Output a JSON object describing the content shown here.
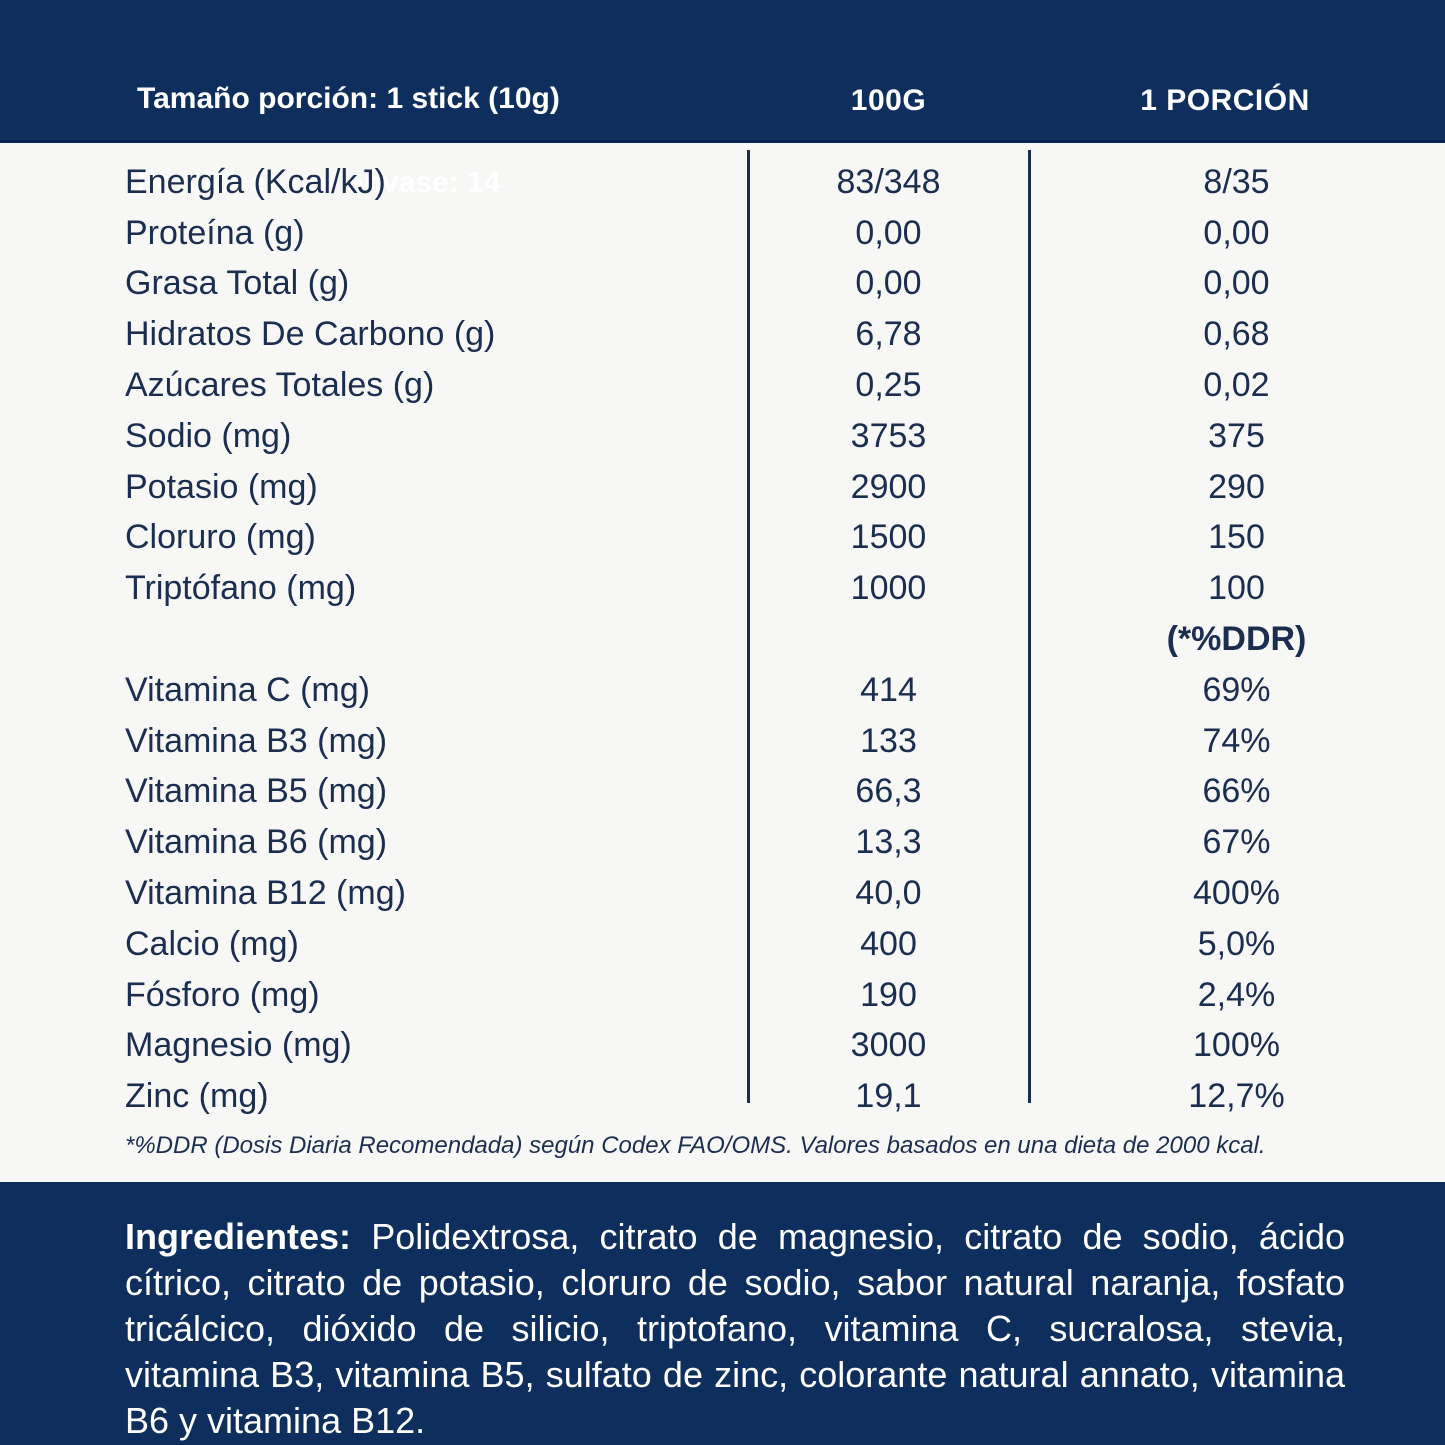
{
  "colors": {
    "navy": "#0e2f5e",
    "body_bg": "#f7f7f5",
    "table_text": "#1c2e50",
    "white": "#ffffff"
  },
  "header": {
    "serving_size": "Tamaño porción: 1 stick (10g)",
    "servings_per_container": "Porciones por envase: 14",
    "col_100g": "100G",
    "col_porcion": "1 PORCIÓN"
  },
  "table": {
    "ddr_header": "(*%DDR)",
    "rows": [
      {
        "label": "Energía (Kcal/kJ)",
        "per_100g": "83/348",
        "per_portion": "8/35"
      },
      {
        "label": "Proteína (g)",
        "per_100g": "0,00",
        "per_portion": "0,00"
      },
      {
        "label": "Grasa Total (g)",
        "per_100g": "0,00",
        "per_portion": "0,00"
      },
      {
        "label": "Hidratos De Carbono (g)",
        "per_100g": "6,78",
        "per_portion": "0,68"
      },
      {
        "label": "Azúcares Totales (g)",
        "per_100g": "0,25",
        "per_portion": "0,02"
      },
      {
        "label": "Sodio (mg)",
        "per_100g": "3753",
        "per_portion": "375"
      },
      {
        "label": "Potasio (mg)",
        "per_100g": "2900",
        "per_portion": "290"
      },
      {
        "label": "Cloruro (mg)",
        "per_100g": "1500",
        "per_portion": "150"
      },
      {
        "label": "Triptófano (mg)",
        "per_100g": "1000",
        "per_portion": "100"
      },
      {
        "label": "",
        "per_100g": "",
        "per_portion": "(*%DDR)",
        "bold": true
      },
      {
        "label": "Vitamina C (mg)",
        "per_100g": "414",
        "per_portion": "69%"
      },
      {
        "label": "Vitamina B3 (mg)",
        "per_100g": "133",
        "per_portion": "74%"
      },
      {
        "label": "Vitamina B5 (mg)",
        "per_100g": "66,3",
        "per_portion": "66%"
      },
      {
        "label": "Vitamina B6 (mg)",
        "per_100g": "13,3",
        "per_portion": "67%"
      },
      {
        "label": "Vitamina B12 (mg)",
        "per_100g": "40,0",
        "per_portion": "400%"
      },
      {
        "label": "Calcio (mg)",
        "per_100g": "400",
        "per_portion": "5,0%"
      },
      {
        "label": "Fósforo (mg)",
        "per_100g": "190",
        "per_portion": "2,4%"
      },
      {
        "label": "Magnesio (mg)",
        "per_100g": "3000",
        "per_portion": "100%"
      },
      {
        "label": "Zinc (mg)",
        "per_100g": "19,1",
        "per_portion": "12,7%"
      }
    ]
  },
  "footnote": "*%DDR (Dosis Diaria Recomendada) según Codex FAO/OMS. Valores basados en una dieta de 2000 kcal.",
  "ingredients": {
    "label": "Ingredientes:",
    "text": "Polidextrosa, citrato de magnesio, citrato de sodio, ácido cítrico, citrato de potasio, cloruro de sodio, sabor natural naranja, fosfato tricálcico, dióxido de silicio, triptofano, vitamina C, sucralosa, stevia, vitamina B3, vitamina B5, sulfato de zinc, colorante natural annato, vitamina B6 y vitamina B12."
  }
}
